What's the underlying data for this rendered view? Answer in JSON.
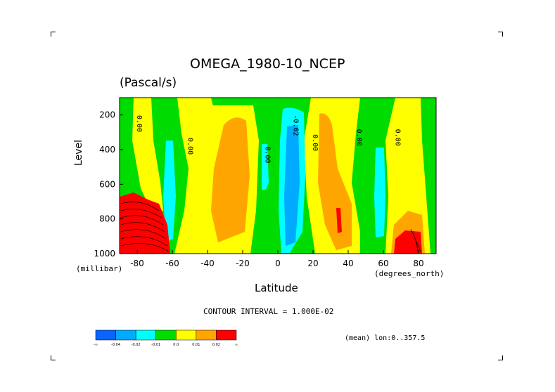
{
  "chart_data": {
    "type": "heatmap",
    "title": "OMEGA_1980-10_NCEP",
    "subtitle": "(Pascal/s)",
    "xlabel": "Latitude",
    "x_units": "(degrees_north)",
    "ylabel": "Level",
    "y_units": "(millibar)",
    "xlim": [
      -90,
      90
    ],
    "ylim": [
      1000,
      100
    ],
    "x_ticks": [
      "-80",
      "-60",
      "-40",
      "-20",
      "0",
      "20",
      "40",
      "60",
      "80"
    ],
    "y_ticks": [
      "200",
      "400",
      "600",
      "800",
      "1000"
    ],
    "contour_interval_text": "CONTOUR INTERVAL = 1.000E-02",
    "contour_labels": [
      "0.00",
      "0.00",
      "0.00",
      "-0.02",
      "0.00",
      "0.00",
      "0.00"
    ],
    "colorbar": {
      "labels": [
        "-∞",
        "-0.04",
        "-0.02",
        "-0.01",
        "0.0",
        "0.01",
        "0.02",
        "∞"
      ],
      "colors": [
        "#0a64ff",
        "#00aaff",
        "#00ffff",
        "#00dc00",
        "#ffff00",
        "#ffa500",
        "#ff0000"
      ]
    },
    "annotation": "(mean) lon:0..357.5",
    "background_color": "#00dc00"
  }
}
